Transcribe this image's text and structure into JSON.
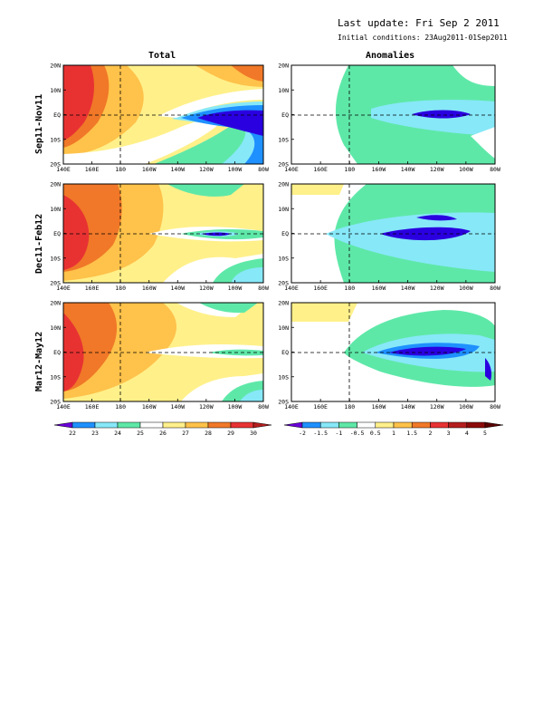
{
  "header": {
    "last_update": "Last update: Fri Sep  2 2011",
    "initial_conditions": "Initial conditions: 23Aug2011-01Sep2011"
  },
  "columns": [
    "Total",
    "Anomalies"
  ],
  "rows": [
    "Sep11-Nov11",
    "Dec11-Feb12",
    "Mar12-May12"
  ],
  "axes": {
    "lon_labels": [
      "140E",
      "160E",
      "180",
      "160W",
      "140W",
      "120W",
      "100W",
      "80W"
    ],
    "lat_labels": [
      "20N",
      "10N",
      "EQ",
      "10S",
      "20S"
    ]
  },
  "legends": {
    "total": {
      "levels": [
        "22",
        "23",
        "24",
        "25",
        "26",
        "27",
        "28",
        "29",
        "30"
      ],
      "colors": [
        "#6a00d8",
        "#1e90ff",
        "#87e8f8",
        "#5ee8a8",
        "#ffffff",
        "#fff08a",
        "#ffc24a",
        "#f07828",
        "#e83232",
        "#b41e1e"
      ]
    },
    "anomalies": {
      "levels": [
        "-2",
        "-1.5",
        "-1",
        "-0.5",
        "0.5",
        "1",
        "1.5",
        "2",
        "3",
        "4",
        "5"
      ],
      "colors": [
        "#6a00d8",
        "#1e90ff",
        "#87e8f8",
        "#5ee8a8",
        "#ffffff",
        "#fff08a",
        "#ffc24a",
        "#f07828",
        "#e83232",
        "#b41e1e",
        "#8c0a0a",
        "#5a0000"
      ]
    }
  },
  "colors": {
    "purple": "#2a00e0",
    "blue": "#1e90ff",
    "lightblue": "#87e8f8",
    "green": "#5ee8a8",
    "white": "#ffffff",
    "yellow": "#fff08a",
    "lightorange": "#ffc24a",
    "orange": "#f07828",
    "red": "#e83232",
    "darkred": "#b41e1e"
  }
}
